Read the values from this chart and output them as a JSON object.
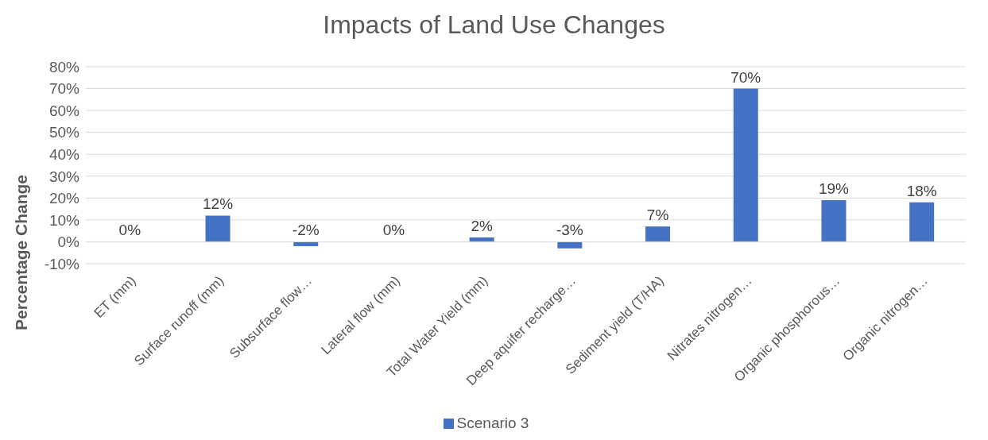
{
  "chart_data": {
    "type": "bar",
    "title": "Impacts of Land Use Changes",
    "ylabel": "Percentage Change",
    "categories": [
      "ET (mm)",
      "Surface runoff (mm)",
      "Subsurface flow…",
      "Lateral flow (mm)",
      "Total Water Yield (mm)",
      "Deep aquifer recharge…",
      "Sediment yield (T/HA)",
      "Nitrates nitrogen…",
      "Organic phosphorous…",
      "Organic nitrogen…"
    ],
    "series": [
      {
        "name": "Scenario 3",
        "color": "#4472c4",
        "values": [
          0,
          12,
          -2,
          0,
          2,
          -3,
          7,
          70,
          19,
          18
        ]
      }
    ],
    "ylim": [
      -10,
      80
    ],
    "yticks": [
      {
        "value": -10,
        "label": "-10%"
      },
      {
        "value": 0,
        "label": "0%"
      },
      {
        "value": 10,
        "label": "10%"
      },
      {
        "value": 20,
        "label": "20%"
      },
      {
        "value": 30,
        "label": "30%"
      },
      {
        "value": 40,
        "label": "40%"
      },
      {
        "value": 50,
        "label": "50%"
      },
      {
        "value": 60,
        "label": "60%"
      },
      {
        "value": 70,
        "label": "70%"
      },
      {
        "value": 80,
        "label": "80%"
      }
    ],
    "value_labels": [
      "0%",
      "12%",
      "-2%",
      "0%",
      "2%",
      "-3%",
      "7%",
      "70%",
      "19%",
      "18%"
    ],
    "grid": "y",
    "legend": "bottom"
  }
}
